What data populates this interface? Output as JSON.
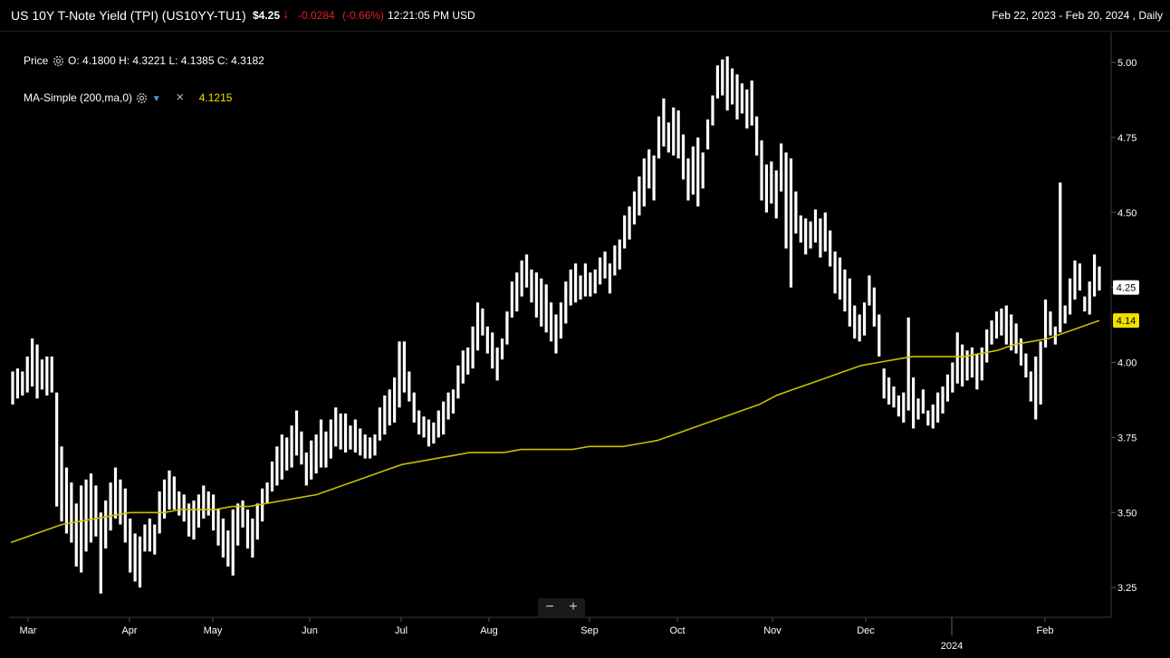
{
  "header": {
    "title": "US 10Y T-Note Yield (TPI)  (US10YY-TU1)",
    "price": "$4.25",
    "arrow": "↓",
    "change": "-0.0284",
    "change_pct": "(-0.66%)",
    "time": "12:21:05 PM USD",
    "range": "Feb 22, 2023 - Feb 20, 2024 , Daily"
  },
  "legend": {
    "price_label": "Price",
    "ohlc": "O: 4.1800  H: 4.3221  L: 4.1385  C: 4.3182",
    "ma_label": "MA-Simple (200,ma,0)",
    "ma_value": "4.1215",
    "close_label": "×"
  },
  "zoom": {
    "minus": "−",
    "plus": "+"
  },
  "colors": {
    "background": "#000000",
    "bars": "#ffffff",
    "ma_line": "#c8c000",
    "price_tag": "#ffffff",
    "ma_tag": "#f0e000",
    "down": "#e0202a"
  },
  "chart_data": {
    "type": "ohlc-bar",
    "ylim": [
      3.19,
      5.05
    ],
    "y_ticks": [
      "5.00",
      "4.75",
      "4.50",
      "4.25",
      "4.00",
      "3.75",
      "3.50",
      "3.25"
    ],
    "x_ticks": [
      "Mar",
      "Apr",
      "May",
      "Jun",
      "Jul",
      "Aug",
      "Sep",
      "Oct",
      "Nov",
      "Dec",
      "2024",
      "Feb"
    ],
    "year_label": "2024",
    "last_price_tag": "4.25",
    "ma_tag": "4.14",
    "grid": false,
    "series": [
      {
        "name": "Price",
        "bars": [
          [
            3.97,
            3.86
          ],
          [
            3.98,
            3.88
          ],
          [
            3.97,
            3.89
          ],
          [
            4.02,
            3.9
          ],
          [
            4.08,
            3.92
          ],
          [
            4.06,
            3.88
          ],
          [
            4.01,
            3.91
          ],
          [
            4.02,
            3.89
          ],
          [
            4.02,
            3.9
          ],
          [
            3.9,
            3.52
          ],
          [
            3.72,
            3.47
          ],
          [
            3.65,
            3.43
          ],
          [
            3.6,
            3.4
          ],
          [
            3.53,
            3.32
          ],
          [
            3.59,
            3.3
          ],
          [
            3.61,
            3.37
          ],
          [
            3.63,
            3.4
          ],
          [
            3.59,
            3.42
          ],
          [
            3.5,
            3.23
          ],
          [
            3.54,
            3.38
          ],
          [
            3.6,
            3.44
          ],
          [
            3.65,
            3.48
          ],
          [
            3.61,
            3.46
          ],
          [
            3.58,
            3.4
          ],
          [
            3.48,
            3.3
          ],
          [
            3.43,
            3.27
          ],
          [
            3.42,
            3.25
          ],
          [
            3.46,
            3.37
          ],
          [
            3.48,
            3.37
          ],
          [
            3.46,
            3.36
          ],
          [
            3.57,
            3.43
          ],
          [
            3.61,
            3.48
          ],
          [
            3.64,
            3.51
          ],
          [
            3.62,
            3.51
          ],
          [
            3.57,
            3.49
          ],
          [
            3.56,
            3.47
          ],
          [
            3.53,
            3.42
          ],
          [
            3.54,
            3.41
          ],
          [
            3.56,
            3.45
          ],
          [
            3.59,
            3.48
          ],
          [
            3.57,
            3.49
          ],
          [
            3.56,
            3.44
          ],
          [
            3.51,
            3.39
          ],
          [
            3.48,
            3.35
          ],
          [
            3.44,
            3.32
          ],
          [
            3.51,
            3.29
          ],
          [
            3.53,
            3.39
          ],
          [
            3.54,
            3.45
          ],
          [
            3.51,
            3.38
          ],
          [
            3.48,
            3.35
          ],
          [
            3.53,
            3.41
          ],
          [
            3.58,
            3.47
          ],
          [
            3.6,
            3.53
          ],
          [
            3.67,
            3.57
          ],
          [
            3.72,
            3.59
          ],
          [
            3.76,
            3.61
          ],
          [
            3.75,
            3.64
          ],
          [
            3.79,
            3.65
          ],
          [
            3.84,
            3.69
          ],
          [
            3.77,
            3.66
          ],
          [
            3.7,
            3.59
          ],
          [
            3.74,
            3.61
          ],
          [
            3.76,
            3.63
          ],
          [
            3.81,
            3.65
          ],
          [
            3.77,
            3.65
          ],
          [
            3.81,
            3.68
          ],
          [
            3.85,
            3.72
          ],
          [
            3.83,
            3.71
          ],
          [
            3.83,
            3.7
          ],
          [
            3.79,
            3.71
          ],
          [
            3.81,
            3.7
          ],
          [
            3.78,
            3.69
          ],
          [
            3.76,
            3.68
          ],
          [
            3.75,
            3.68
          ],
          [
            3.76,
            3.69
          ],
          [
            3.85,
            3.74
          ],
          [
            3.89,
            3.76
          ],
          [
            3.91,
            3.79
          ],
          [
            3.95,
            3.8
          ],
          [
            4.07,
            3.85
          ],
          [
            4.07,
            3.9
          ],
          [
            3.97,
            3.87
          ],
          [
            3.9,
            3.8
          ],
          [
            3.84,
            3.76
          ],
          [
            3.82,
            3.75
          ],
          [
            3.81,
            3.72
          ],
          [
            3.8,
            3.73
          ],
          [
            3.84,
            3.75
          ],
          [
            3.87,
            3.76
          ],
          [
            3.9,
            3.81
          ],
          [
            3.91,
            3.83
          ],
          [
            3.99,
            3.88
          ],
          [
            4.04,
            3.93
          ],
          [
            4.05,
            3.96
          ],
          [
            4.12,
            3.98
          ],
          [
            4.2,
            4.04
          ],
          [
            4.18,
            4.09
          ],
          [
            4.12,
            4.03
          ],
          [
            4.1,
            3.98
          ],
          [
            4.05,
            3.94
          ],
          [
            4.08,
            4.01
          ],
          [
            4.17,
            4.06
          ],
          [
            4.27,
            4.15
          ],
          [
            4.3,
            4.17
          ],
          [
            4.34,
            4.22
          ],
          [
            4.36,
            4.25
          ],
          [
            4.31,
            4.2
          ],
          [
            4.3,
            4.15
          ],
          [
            4.28,
            4.12
          ],
          [
            4.26,
            4.1
          ],
          [
            4.2,
            4.07
          ],
          [
            4.16,
            4.03
          ],
          [
            4.2,
            4.08
          ],
          [
            4.27,
            4.13
          ],
          [
            4.31,
            4.19
          ],
          [
            4.33,
            4.2
          ],
          [
            4.29,
            4.21
          ],
          [
            4.33,
            4.22
          ],
          [
            4.3,
            4.22
          ],
          [
            4.31,
            4.23
          ],
          [
            4.35,
            4.26
          ],
          [
            4.37,
            4.28
          ],
          [
            4.33,
            4.23
          ],
          [
            4.39,
            4.29
          ],
          [
            4.41,
            4.31
          ],
          [
            4.49,
            4.38
          ],
          [
            4.52,
            4.41
          ],
          [
            4.57,
            4.46
          ],
          [
            4.62,
            4.49
          ],
          [
            4.68,
            4.52
          ],
          [
            4.71,
            4.58
          ],
          [
            4.69,
            4.54
          ],
          [
            4.82,
            4.68
          ],
          [
            4.88,
            4.72
          ],
          [
            4.8,
            4.7
          ],
          [
            4.85,
            4.69
          ],
          [
            4.84,
            4.68
          ],
          [
            4.76,
            4.61
          ],
          [
            4.68,
            4.54
          ],
          [
            4.72,
            4.56
          ],
          [
            4.75,
            4.52
          ],
          [
            4.7,
            4.58
          ],
          [
            4.81,
            4.71
          ],
          [
            4.89,
            4.79
          ],
          [
            4.99,
            4.88
          ],
          [
            5.01,
            4.89
          ],
          [
            5.02,
            4.84
          ],
          [
            4.98,
            4.86
          ],
          [
            4.96,
            4.81
          ],
          [
            4.93,
            4.83
          ],
          [
            4.91,
            4.78
          ],
          [
            4.94,
            4.79
          ],
          [
            4.82,
            4.69
          ],
          [
            4.74,
            4.54
          ],
          [
            4.66,
            4.5
          ],
          [
            4.67,
            4.53
          ],
          [
            4.64,
            4.48
          ],
          [
            4.73,
            4.57
          ],
          [
            4.7,
            4.38
          ],
          [
            4.68,
            4.25
          ],
          [
            4.57,
            4.43
          ],
          [
            4.49,
            4.4
          ],
          [
            4.48,
            4.36
          ],
          [
            4.47,
            4.38
          ],
          [
            4.51,
            4.4
          ],
          [
            4.48,
            4.35
          ],
          [
            4.5,
            4.37
          ],
          [
            4.44,
            4.32
          ],
          [
            4.37,
            4.23
          ],
          [
            4.35,
            4.21
          ],
          [
            4.31,
            4.17
          ],
          [
            4.28,
            4.12
          ],
          [
            4.19,
            4.08
          ],
          [
            4.16,
            4.07
          ],
          [
            4.2,
            4.09
          ],
          [
            4.29,
            4.19
          ],
          [
            4.25,
            4.12
          ],
          [
            4.16,
            4.02
          ],
          [
            3.98,
            3.88
          ],
          [
            3.95,
            3.86
          ],
          [
            3.92,
            3.85
          ],
          [
            3.89,
            3.82
          ],
          [
            3.9,
            3.8
          ],
          [
            4.15,
            3.84
          ],
          [
            3.95,
            3.78
          ],
          [
            3.88,
            3.81
          ],
          [
            3.91,
            3.83
          ],
          [
            3.84,
            3.79
          ],
          [
            3.86,
            3.78
          ],
          [
            3.9,
            3.8
          ],
          [
            3.92,
            3.83
          ],
          [
            3.96,
            3.87
          ],
          [
            4.0,
            3.9
          ],
          [
            4.1,
            3.93
          ],
          [
            4.06,
            3.92
          ],
          [
            4.04,
            3.94
          ],
          [
            4.05,
            3.95
          ],
          [
            4.03,
            3.91
          ],
          [
            4.05,
            3.94
          ],
          [
            4.11,
            4.0
          ],
          [
            4.14,
            4.06
          ],
          [
            4.17,
            4.08
          ],
          [
            4.18,
            4.09
          ],
          [
            4.19,
            4.06
          ],
          [
            4.16,
            4.04
          ],
          [
            4.13,
            4.03
          ],
          [
            4.08,
            3.99
          ],
          [
            4.03,
            3.95
          ],
          [
            3.97,
            3.87
          ],
          [
            4.02,
            3.81
          ],
          [
            4.07,
            3.86
          ],
          [
            4.21,
            4.05
          ],
          [
            4.17,
            4.09
          ],
          [
            4.12,
            4.06
          ],
          [
            4.6,
            4.1
          ],
          [
            4.19,
            4.13
          ],
          [
            4.28,
            4.16
          ],
          [
            4.34,
            4.21
          ],
          [
            4.33,
            4.24
          ],
          [
            4.22,
            4.17
          ],
          [
            4.27,
            4.16
          ],
          [
            4.36,
            4.22
          ],
          [
            4.32,
            4.24
          ]
        ]
      },
      {
        "name": "MA-Simple (200,ma,0)",
        "values": [
          3.4,
          3.42,
          3.44,
          3.46,
          3.47,
          3.48,
          3.49,
          3.5,
          3.5,
          3.5,
          3.51,
          3.51,
          3.51,
          3.52,
          3.52,
          3.53,
          3.54,
          3.55,
          3.56,
          3.58,
          3.6,
          3.62,
          3.64,
          3.66,
          3.67,
          3.68,
          3.69,
          3.7,
          3.7,
          3.7,
          3.71,
          3.71,
          3.71,
          3.71,
          3.72,
          3.72,
          3.72,
          3.73,
          3.74,
          3.76,
          3.78,
          3.8,
          3.82,
          3.84,
          3.86,
          3.89,
          3.91,
          3.93,
          3.95,
          3.97,
          3.99,
          4.0,
          4.01,
          4.02,
          4.02,
          4.02,
          4.02,
          4.03,
          4.04,
          4.06,
          4.07,
          4.08,
          4.1,
          4.12,
          4.14
        ]
      }
    ]
  }
}
